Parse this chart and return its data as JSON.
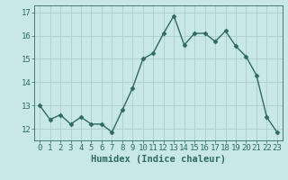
{
  "x": [
    0,
    1,
    2,
    3,
    4,
    5,
    6,
    7,
    8,
    9,
    10,
    11,
    12,
    13,
    14,
    15,
    16,
    17,
    18,
    19,
    20,
    21,
    22,
    23
  ],
  "y": [
    13.0,
    12.4,
    12.6,
    12.2,
    12.5,
    12.2,
    12.2,
    11.85,
    12.8,
    13.75,
    15.0,
    15.25,
    16.1,
    16.85,
    15.6,
    16.1,
    16.1,
    15.75,
    16.2,
    15.55,
    15.1,
    14.3,
    12.5,
    11.85
  ],
  "line_color": "#2e6b5e",
  "marker": "D",
  "markersize": 2.5,
  "linewidth": 1.0,
  "bg_color": "#c8e8e8",
  "grid_color": "#b0cccc",
  "xlabel": "Humidex (Indice chaleur)",
  "xlabel_fontsize": 7.5,
  "xlabel_color": "#2e6b5e",
  "tick_color": "#2e6b5e",
  "tick_labelsize": 6.5,
  "ylim": [
    11.5,
    17.3
  ],
  "yticks": [
    12,
    13,
    14,
    15,
    16,
    17
  ],
  "xlim": [
    -0.5,
    23.5
  ],
  "xticks": [
    0,
    1,
    2,
    3,
    4,
    5,
    6,
    7,
    8,
    9,
    10,
    11,
    12,
    13,
    14,
    15,
    16,
    17,
    18,
    19,
    20,
    21,
    22,
    23
  ]
}
